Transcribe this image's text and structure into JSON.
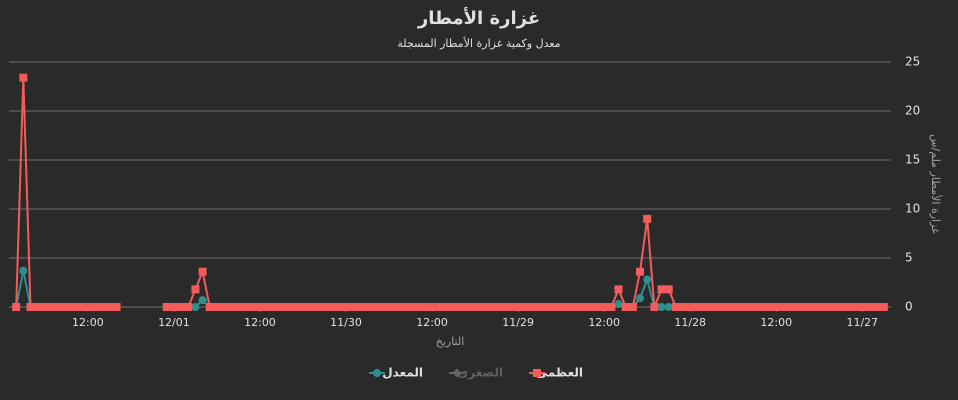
{
  "chart_data": {
    "type": "line",
    "title": "غزارة الأمطار",
    "subtitle": "معدل وكمية غزارة الأمطار المسجلة",
    "x_label": "التاريخ",
    "y_label": "غزارة الأمطار ملم/س",
    "x_reversed": true,
    "x": [
      "11/26 21:00",
      "11/26 22:00",
      "11/26 23:00",
      "11/27 00:00",
      "11/27 01:00",
      "11/27 02:00",
      "11/27 03:00",
      "11/27 04:00",
      "11/27 05:00",
      "11/27 06:00",
      "11/27 07:00",
      "11/27 08:00",
      "11/27 09:00",
      "11/27 10:00",
      "11/27 11:00",
      "11/27 12:00",
      "11/27 13:00",
      "11/27 14:00",
      "11/27 15:00",
      "11/27 16:00",
      "11/27 17:00",
      "11/27 18:00",
      "11/27 19:00",
      "11/27 20:00",
      "11/27 21:00",
      "11/27 22:00",
      "11/27 23:00",
      "11/28 00:00",
      "11/28 01:00",
      "11/28 02:00",
      "11/28 03:00",
      "11/28 04:00",
      "11/28 05:00",
      "11/28 06:00",
      "11/28 07:00",
      "11/28 08:00",
      "11/28 09:00",
      "11/28 10:00",
      "11/28 11:00",
      "11/28 12:00",
      "11/28 13:00",
      "11/28 14:00",
      "11/28 15:00",
      "11/28 16:00",
      "11/28 17:00",
      "11/28 18:00",
      "11/28 19:00",
      "11/28 20:00",
      "11/28 21:00",
      "11/28 22:00",
      "11/28 23:00",
      "11/29 00:00",
      "11/29 01:00",
      "11/29 02:00",
      "11/29 03:00",
      "11/29 04:00",
      "11/29 05:00",
      "11/29 06:00",
      "11/29 07:00",
      "11/29 08:00",
      "11/29 09:00",
      "11/29 10:00",
      "11/29 11:00",
      "11/29 12:00",
      "11/29 13:00",
      "11/29 14:00",
      "11/29 15:00",
      "11/29 16:00",
      "11/29 17:00",
      "11/29 18:00",
      "11/29 19:00",
      "11/29 20:00",
      "11/29 21:00",
      "11/29 22:00",
      "11/29 23:00",
      "11/30 00:00",
      "11/30 01:00",
      "11/30 02:00",
      "11/30 03:00",
      "11/30 04:00",
      "11/30 05:00",
      "11/30 06:00",
      "11/30 07:00",
      "11/30 08:00",
      "11/30 09:00",
      "11/30 10:00",
      "11/30 11:00",
      "11/30 12:00",
      "11/30 13:00",
      "11/30 14:00",
      "11/30 15:00",
      "11/30 16:00",
      "11/30 17:00",
      "11/30 18:00",
      "11/30 19:00",
      "11/30 20:00",
      "11/30 21:00",
      "11/30 22:00",
      "11/30 23:00",
      "12/01 00:00",
      "12/01 01:00",
      "12/01 02:00",
      "12/01 03:00",
      "12/01 04:00",
      "12/01 05:00",
      "12/01 06:00",
      "12/01 07:00",
      "12/01 08:00",
      "12/01 09:00",
      "12/01 10:00",
      "12/01 11:00",
      "12/01 12:00",
      "12/01 13:00",
      "12/01 14:00",
      "12/01 15:00",
      "12/01 16:00",
      "12/01 17:00",
      "12/01 18:00",
      "12/01 19:00",
      "12/01 20:00",
      "12/01 21:00",
      "12/01 22:00"
    ],
    "series": [
      {
        "name": "العظمى",
        "color": "#f45b5b",
        "marker": "square",
        "values": [
          0,
          0,
          0,
          0,
          0,
          0,
          0,
          0,
          0,
          0,
          0,
          0,
          0,
          0,
          0,
          0,
          0,
          0,
          0,
          0,
          0,
          0,
          0,
          0,
          0,
          0,
          0,
          0,
          0,
          0,
          1.8,
          1.8,
          0,
          9,
          3.6,
          0,
          0,
          1.8,
          0,
          0,
          0,
          0,
          0,
          0,
          0,
          0,
          0,
          0,
          0,
          0,
          0,
          0,
          0,
          0,
          0,
          0,
          0,
          0,
          0,
          0,
          0,
          0,
          0,
          0,
          0,
          0,
          0,
          0,
          0,
          0,
          0,
          0,
          0,
          0,
          0,
          0,
          0,
          0,
          0,
          0,
          0,
          0,
          0,
          0,
          0,
          0,
          0,
          0,
          0,
          0,
          0,
          0,
          0,
          0,
          0,
          3.6,
          1.8,
          0,
          0,
          0,
          0,
          null,
          null,
          null,
          null,
          null,
          null,
          0,
          0,
          0,
          0,
          0,
          0,
          0,
          0,
          0,
          0,
          0,
          0,
          0,
          23.4,
          0
        ]
      },
      {
        "name": "الصغرى",
        "color": "#666666",
        "marker": "diamond",
        "visible": false
      },
      {
        "name": "المعدل",
        "color": "#2b908f",
        "marker": "circle",
        "values": [
          0,
          0,
          0,
          0,
          0,
          0,
          0,
          0,
          0,
          0,
          0,
          0,
          0,
          0,
          0,
          0,
          0,
          0,
          0,
          0,
          0,
          0,
          0,
          0,
          0,
          0,
          0,
          0,
          0,
          0,
          0,
          0,
          0,
          2.8,
          0.9,
          0,
          0,
          0.3,
          0,
          0,
          0,
          0,
          0,
          0,
          0,
          0,
          0,
          0,
          0,
          0,
          0,
          0,
          0,
          0,
          0,
          0,
          0,
          0,
          0,
          0,
          0,
          0,
          0,
          0,
          0,
          0,
          0,
          0,
          0,
          0,
          0,
          0,
          0,
          0,
          0,
          0,
          0,
          0,
          0,
          0,
          0,
          0,
          0,
          0,
          0,
          0,
          0,
          0,
          0,
          0,
          0,
          0,
          0,
          0,
          0,
          0.7,
          0,
          0,
          0,
          0,
          0,
          null,
          null,
          null,
          null,
          null,
          null,
          0,
          0,
          0,
          0,
          0,
          0,
          0,
          0,
          0,
          0,
          0,
          0,
          0,
          3.7,
          0
        ]
      }
    ],
    "xlim": [
      "11/26 20:00",
      "12/01 23:00"
    ],
    "xticks": [
      {
        "value": "11/27 00:00",
        "label": "11/27"
      },
      {
        "value": "11/27 12:00",
        "label": "12:00"
      },
      {
        "value": "11/28 00:00",
        "label": "11/28"
      },
      {
        "value": "11/28 12:00",
        "label": "12:00"
      },
      {
        "value": "11/29 00:00",
        "label": "11/29"
      },
      {
        "value": "11/29 12:00",
        "label": "12:00"
      },
      {
        "value": "11/30 00:00",
        "label": "11/30"
      },
      {
        "value": "11/30 12:00",
        "label": "12:00"
      },
      {
        "value": "12/01 00:00",
        "label": "12/01"
      },
      {
        "value": "12/01 12:00",
        "label": "12:00"
      }
    ],
    "ylim": [
      0,
      25
    ],
    "yticks": [
      0,
      5,
      10,
      15,
      20,
      25
    ],
    "grid": true
  }
}
